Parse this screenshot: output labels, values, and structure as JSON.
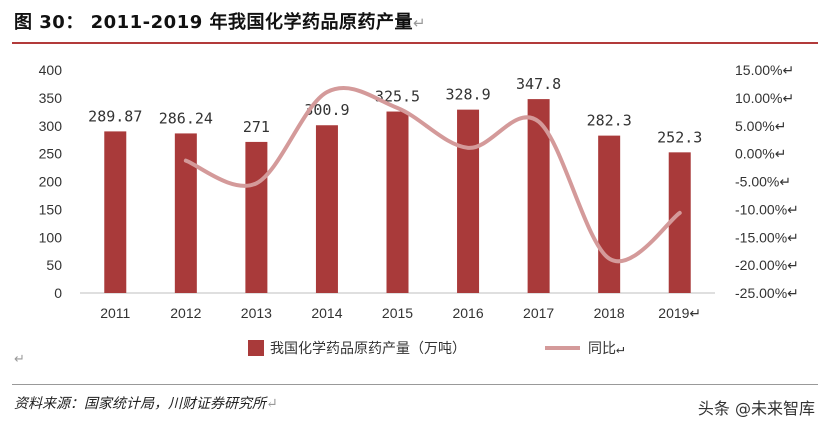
{
  "title": "图 30： 2011-2019 年我国化学药品原药产量",
  "title_mark": "↵",
  "source": "资料来源：国家统计局，川财证券研究所",
  "source_mark": "↵",
  "para_mark": "↵",
  "watermark": "头条 @未来智库",
  "colors": {
    "bar": "#a93a3a",
    "line": "#d49a9a",
    "rule": "#b23a3a"
  },
  "chart_data": {
    "type": "bar",
    "categories": [
      "2011",
      "2012",
      "2013",
      "2014",
      "2015",
      "2016",
      "2017",
      "2018",
      "2019"
    ],
    "last_category_mark": "↵",
    "series": [
      {
        "name": "我国化学药品原药产量（万吨）",
        "type": "bar",
        "axis": "left",
        "values": [
          289.87,
          286.24,
          271,
          300.9,
          325.5,
          328.9,
          347.8,
          282.3,
          252.3
        ],
        "labels": [
          "289.87",
          "286.24",
          "271",
          "300.9",
          "325.5",
          "328.9",
          "347.8",
          "282.3",
          "252.3"
        ]
      },
      {
        "name": "同比",
        "type": "line",
        "axis": "right",
        "values": [
          null,
          -1.25,
          -5.32,
          11.03,
          8.18,
          1.04,
          5.75,
          -18.83,
          -10.63
        ]
      }
    ],
    "legend_mark": "↵",
    "y_left": {
      "ticks": [
        "0",
        "50",
        "100",
        "150",
        "200",
        "250",
        "300",
        "350",
        "400"
      ],
      "ylim": [
        0,
        400
      ]
    },
    "y_right": {
      "ticks": [
        "15.00",
        "10.00",
        "5.00",
        "0.00",
        "-5.00",
        "-10.00",
        "-15.00",
        "-20.00",
        "-25.00"
      ],
      "tick_values": [
        15,
        10,
        5,
        0,
        -5,
        -10,
        -15,
        -20,
        -25
      ],
      "ylim": [
        -25,
        15
      ],
      "suffix": "%",
      "mark": "↵"
    },
    "legend": "bottom"
  }
}
